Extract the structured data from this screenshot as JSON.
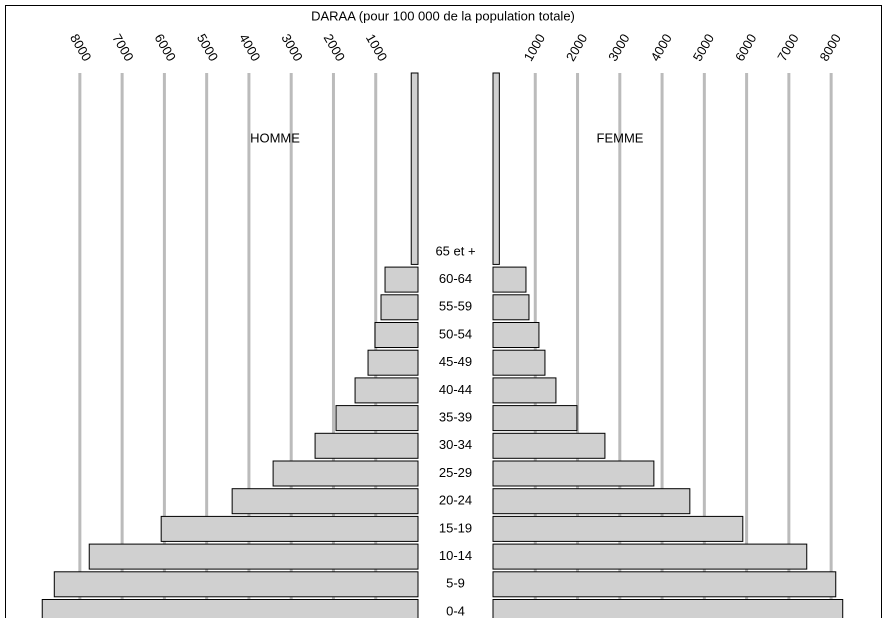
{
  "chart_data": {
    "type": "pyramid",
    "title": "DARAA (pour 100 000 de la population totale)",
    "categories": [
      "0-4",
      "5-9",
      "10-14",
      "15-19",
      "20-24",
      "25-29",
      "30-34",
      "35-39",
      "40-44",
      "45-49",
      "50-54",
      "55-59",
      "60-64",
      "65 et +"
    ],
    "series": [
      {
        "name": "HOMME",
        "color": "#d0d0d0",
        "values": [
          8890,
          8605,
          7778,
          6076,
          4397,
          3428,
          2435,
          1939,
          1489,
          1182,
          1017,
          875,
          780,
          160
        ]
      },
      {
        "name": "FEMME",
        "color": "#d0d0d0",
        "values": [
          8274,
          8109,
          7423,
          5910,
          4657,
          3806,
          2648,
          1986,
          1489,
          1229,
          1087,
          851,
          780,
          150
        ]
      }
    ],
    "xlim": [
      0,
      9700
    ],
    "xticks": [
      1000,
      2000,
      3000,
      4000,
      5000,
      6000,
      7000,
      8000
    ],
    "grid": true
  }
}
